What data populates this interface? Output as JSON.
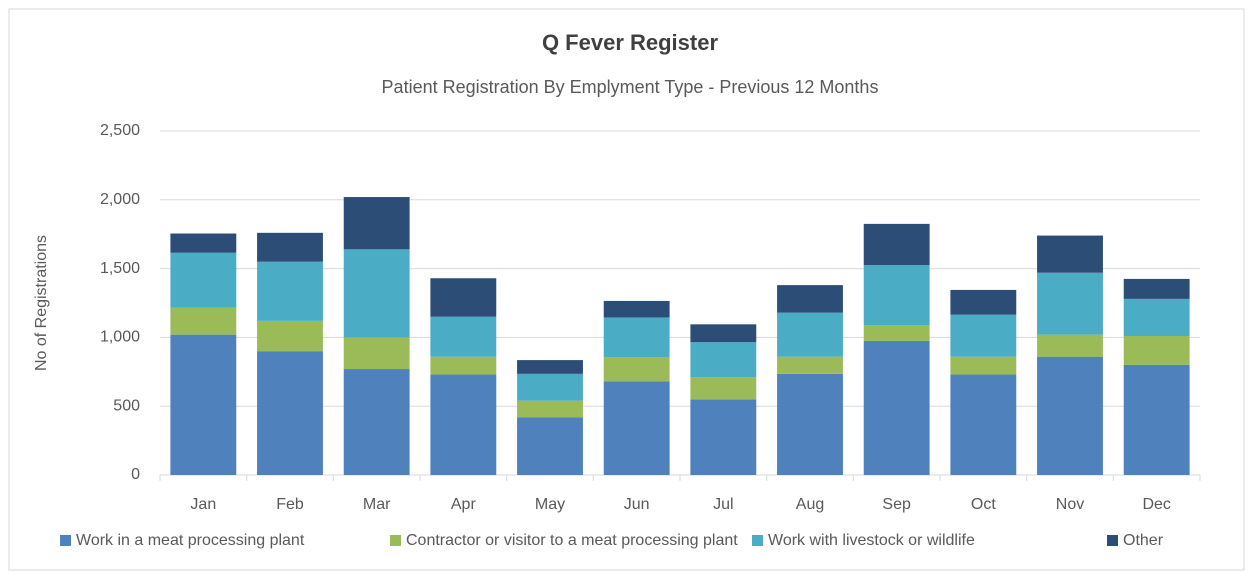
{
  "chart_data": {
    "type": "stacked_bar",
    "title": "Q Fever Register",
    "subtitle": "Patient Registration By Emplyment Type - Previous 12 Months",
    "y_label": "No of Registrations",
    "categories": [
      "Jan",
      "Feb",
      "Mar",
      "Apr",
      "May",
      "Jun",
      "Jul",
      "Aug",
      "Sep",
      "Oct",
      "Nov",
      "Dec"
    ],
    "series": [
      {
        "name": "Work in a meat processing plant",
        "color": "#4f81bd",
        "values": [
          1020,
          900,
          770,
          730,
          420,
          680,
          550,
          735,
          975,
          730,
          860,
          800
        ]
      },
      {
        "name": "Contractor or visitor to a meat processing plant",
        "color": "#9bbb59",
        "values": [
          195,
          220,
          230,
          130,
          120,
          175,
          160,
          125,
          115,
          130,
          160,
          210
        ]
      },
      {
        "name": "Work with livestock or wildlife",
        "color": "#4bacc6",
        "values": [
          400,
          430,
          640,
          290,
          195,
          290,
          255,
          320,
          435,
          305,
          450,
          270
        ]
      },
      {
        "name": "Other",
        "color": "#2c4d75",
        "values": [
          140,
          210,
          380,
          280,
          100,
          120,
          130,
          200,
          300,
          180,
          270,
          145
        ]
      }
    ],
    "ylim": [
      0,
      2500
    ],
    "yticks": [
      0,
      500,
      {
        "value": 1000,
        "label": "1,000"
      },
      {
        "value": 1500,
        "label": "1,500"
      },
      {
        "value": 2000,
        "label": "2,000"
      },
      {
        "value": 2500,
        "label": "2,500"
      }
    ],
    "grid": true,
    "legend": "bottom"
  }
}
